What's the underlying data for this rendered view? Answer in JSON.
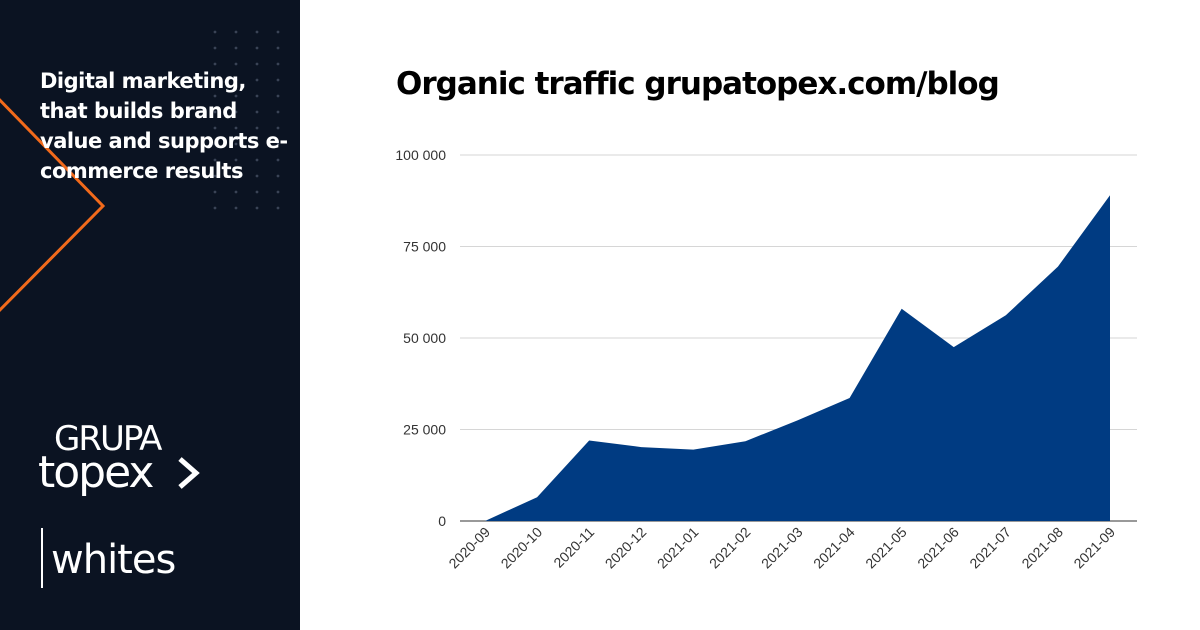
{
  "sidebar": {
    "tagline": "Digital marketing, that builds brand value and supports e-commerce results",
    "logo": {
      "grupa": "GRUPA",
      "topex": "topex",
      "whites": "whites"
    },
    "accent_color": "#f26a1b",
    "background_color": "#0b1322"
  },
  "chart_data": {
    "type": "area",
    "title": "Organic traffic grupatopex.com/blog",
    "xlabel": "",
    "ylabel": "",
    "categories": [
      "2020-09",
      "2020-10",
      "2020-11",
      "2020-12",
      "2021-01",
      "2021-02",
      "2021-03",
      "2021-04",
      "2021-05",
      "2021-06",
      "2021-07",
      "2021-08",
      "2021-09"
    ],
    "series": [
      {
        "values": [
          0,
          6500,
          22000,
          20200,
          19500,
          21800,
          27500,
          33600,
          58000,
          47500,
          56200,
          69500,
          89000
        ],
        "color": "#003b82"
      }
    ],
    "ylim": [
      0,
      100000
    ],
    "yticks": [
      0,
      25000,
      50000,
      75000,
      100000
    ],
    "ytick_labels": [
      "0",
      "25 000",
      "50 000",
      "75 000",
      "100 000"
    ],
    "grid": true,
    "legend": "none"
  }
}
